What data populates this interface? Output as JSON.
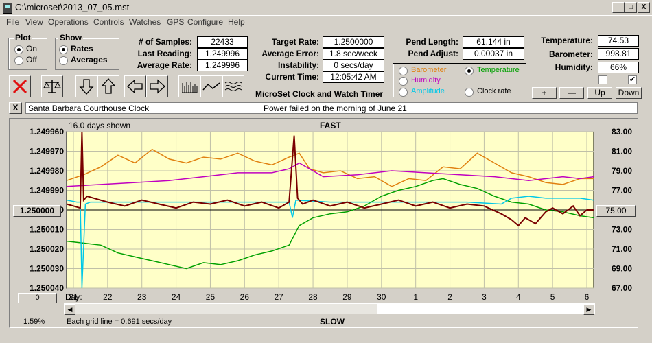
{
  "window": {
    "title": "C:\\microset\\2013_07_05.mst",
    "min_label": "_",
    "max_label": "□",
    "close_label": "X"
  },
  "menu": [
    "File",
    "View",
    "Operations",
    "Controls",
    "Watches",
    "GPS",
    "Configure",
    "Help"
  ],
  "plot_group": {
    "title": "Plot",
    "on": "On",
    "off": "Off",
    "selected": "On"
  },
  "show_group": {
    "title": "Show",
    "rates": "Rates",
    "averages": "Averages",
    "selected": "Rates"
  },
  "stats": {
    "samples_label": "# of Samples:",
    "samples": "22433",
    "last_label": "Last Reading:",
    "last": "1.249996",
    "avg_label": "Average Rate:",
    "avg": "1.249996",
    "target_label": "Target Rate:",
    "target": "1.2500000",
    "avgerr_label": "Average Error:",
    "avgerr": "1.8 sec/week",
    "instab_label": "Instability:",
    "instab": "0 secs/day",
    "time_label": "Current Time:",
    "time": "12:05:42 AM",
    "pendlen_label": "Pend Length:",
    "pendlen": "61.144 in",
    "pendadj_label": "Pend Adjust:",
    "pendadj": "0.00037 in",
    "temp_label": "Temperature:",
    "temp": "74.53",
    "baro_label": "Barometer:",
    "baro": "998.81",
    "hum_label": "Humidity:",
    "hum": "66%"
  },
  "app_name": "MicroSet Clock and Watch Timer",
  "sensor_select": {
    "barometer": "Barometer",
    "temperature": "Temperature",
    "humidity": "Humidity",
    "amplitude": "Amplitude",
    "clockrate": "Clock rate",
    "selected": "Temperature",
    "colors": {
      "barometer": "#e08010",
      "temperature": "#00a000",
      "humidity": "#c000c0",
      "amplitude": "#00c8e8",
      "clockrate": "#202020"
    }
  },
  "adjust_buttons": {
    "plus": "+",
    "minus": "—",
    "up": "Up",
    "down": "Down"
  },
  "checks": {
    "left": false,
    "right": true,
    "mark": "✔"
  },
  "notes": {
    "close_label": "X",
    "clock_name": "Santa Barbara Courthouse Clock",
    "note": "Power failed on the morning of June 21"
  },
  "chart_data": {
    "type": "line",
    "title_top": "FAST",
    "title_bottom": "SLOW",
    "days_shown": "16.0 days shown",
    "grid_note": "Each grid line = 0.691 secs/day",
    "percent": "1.59%",
    "left_button": "1.250000",
    "right_button": "75.00",
    "zero_button": "0",
    "xlabel": "Day:",
    "x_ticks": [
      "21",
      "22",
      "23",
      "24",
      "25",
      "26",
      "27",
      "28",
      "29",
      "30",
      "1",
      "2",
      "3",
      "4",
      "5",
      "6"
    ],
    "y_left_ticks": [
      "1.249960",
      "1.249970",
      "1.249980",
      "1.249990",
      "1.250000",
      "1.250010",
      "1.250020",
      "1.250030",
      "1.250040"
    ],
    "y_right_ticks": [
      "83.00",
      "81.00",
      "79.00",
      "77.00",
      "75.00",
      "73.00",
      "71.00",
      "69.00",
      "67.00"
    ],
    "ylim_left": [
      1.24996,
      1.25004
    ],
    "ylim_right": [
      67,
      83
    ],
    "x_range": [
      20.8,
      36.2
    ],
    "grid": true,
    "series": [
      {
        "name": "Barometer",
        "color": "#e08010",
        "x": [
          20.8,
          21.3,
          21.8,
          22.3,
          22.8,
          23.3,
          23.8,
          24.3,
          24.8,
          25.3,
          25.8,
          26.3,
          26.8,
          27.3,
          27.6,
          27.9,
          28.3,
          28.8,
          29.3,
          29.8,
          30.3,
          30.8,
          31.3,
          31.8,
          32.3,
          32.8,
          33.3,
          33.8,
          34.3,
          34.8,
          35.3,
          35.8,
          36.2
        ],
        "y": [
          1.249985,
          1.249982,
          1.249978,
          1.249972,
          1.249976,
          1.249969,
          1.249974,
          1.249976,
          1.249973,
          1.249974,
          1.249971,
          1.249975,
          1.249977,
          1.249973,
          1.249971,
          1.249979,
          1.249981,
          1.24998,
          1.249984,
          1.249983,
          1.249988,
          1.249984,
          1.249985,
          1.249978,
          1.249979,
          1.249971,
          1.249976,
          1.249981,
          1.249983,
          1.249986,
          1.249987,
          1.249984,
          1.249984
        ]
      },
      {
        "name": "Humidity",
        "color": "#c000c0",
        "x": [
          20.8,
          21.8,
          22.8,
          23.8,
          24.8,
          25.8,
          26.8,
          27.3,
          27.6,
          28.3,
          29.3,
          30.3,
          31.3,
          32.3,
          33.3,
          34.3,
          35.3,
          35.8,
          36.2
        ],
        "y": [
          1.249988,
          1.249987,
          1.249986,
          1.249985,
          1.249983,
          1.249981,
          1.249981,
          1.249979,
          1.249976,
          1.249983,
          1.249982,
          1.24998,
          1.249981,
          1.249982,
          1.249983,
          1.249985,
          1.249983,
          1.249984,
          1.249983
        ]
      },
      {
        "name": "Temperature",
        "color": "#00a000",
        "x": [
          20.8,
          21.3,
          21.8,
          22.3,
          22.8,
          23.3,
          23.8,
          24.3,
          24.8,
          25.3,
          25.8,
          26.3,
          26.8,
          27.3,
          27.6,
          28.0,
          28.5,
          29.0,
          29.5,
          30.0,
          30.5,
          31.0,
          31.5,
          31.8,
          32.3,
          32.8,
          33.3,
          33.8,
          34.3,
          34.8,
          35.3,
          35.8,
          36.2
        ],
        "y": [
          1.250016,
          1.250017,
          1.250018,
          1.250022,
          1.250024,
          1.250026,
          1.250028,
          1.25003,
          1.250027,
          1.250028,
          1.250026,
          1.250023,
          1.250021,
          1.250018,
          1.250008,
          1.250004,
          1.250002,
          1.250001,
          1.249998,
          1.249993,
          1.24999,
          1.249988,
          1.249985,
          1.249984,
          1.249987,
          1.249989,
          1.249993,
          1.249996,
          1.249997,
          1.25,
          1.250001,
          1.250003,
          1.250004
        ]
      },
      {
        "name": "Amplitude",
        "color": "#00c8e8",
        "x": [
          20.8,
          21.1,
          21.2,
          21.25,
          21.35,
          21.5,
          22.5,
          23.5,
          24.5,
          25.5,
          26.5,
          27.3,
          27.4,
          27.5,
          28.5,
          29.5,
          30.5,
          31.5,
          32.5,
          33.5,
          33.8,
          34.3,
          34.8,
          35.3,
          35.8,
          36.2
        ],
        "y": [
          1.249995,
          1.249996,
          1.249996,
          1.25004,
          1.249997,
          1.249996,
          1.249996,
          1.249996,
          1.249996,
          1.249996,
          1.249996,
          1.249996,
          1.250004,
          1.249995,
          1.249996,
          1.249996,
          1.249996,
          1.249996,
          1.249996,
          1.249997,
          1.249994,
          1.249993,
          1.249994,
          1.249994,
          1.249994,
          1.249995
        ]
      },
      {
        "name": "Clock rate",
        "color": "#7a0000",
        "x": [
          20.8,
          21.0,
          21.2,
          21.25,
          21.3,
          21.4,
          21.6,
          22.0,
          22.5,
          23.0,
          23.5,
          24.0,
          24.5,
          25.0,
          25.5,
          26.0,
          26.5,
          27.0,
          27.3,
          27.45,
          27.55,
          27.7,
          28.0,
          28.5,
          29.0,
          29.5,
          30.0,
          30.5,
          31.0,
          31.5,
          32.0,
          32.5,
          33.0,
          33.5,
          33.8,
          34.0,
          34.2,
          34.5,
          34.8,
          35.0,
          35.3,
          35.6,
          35.8,
          36.0,
          36.2
        ],
        "y": [
          1.249997,
          1.249998,
          1.249999,
          1.24996,
          1.249995,
          1.249993,
          1.249994,
          1.249996,
          1.249998,
          1.249995,
          1.249997,
          1.249999,
          1.249996,
          1.249997,
          1.249995,
          1.249998,
          1.249996,
          1.249999,
          1.249996,
          1.249962,
          1.249994,
          1.249997,
          1.249995,
          1.249998,
          1.249996,
          1.249999,
          1.249997,
          1.249995,
          1.249998,
          1.249996,
          1.249999,
          1.249997,
          1.249998,
          1.250002,
          1.250005,
          1.250008,
          1.250004,
          1.250007,
          1.250001,
          1.249999,
          1.250002,
          1.249998,
          1.250003,
          1.25,
          1.25
        ]
      }
    ]
  }
}
